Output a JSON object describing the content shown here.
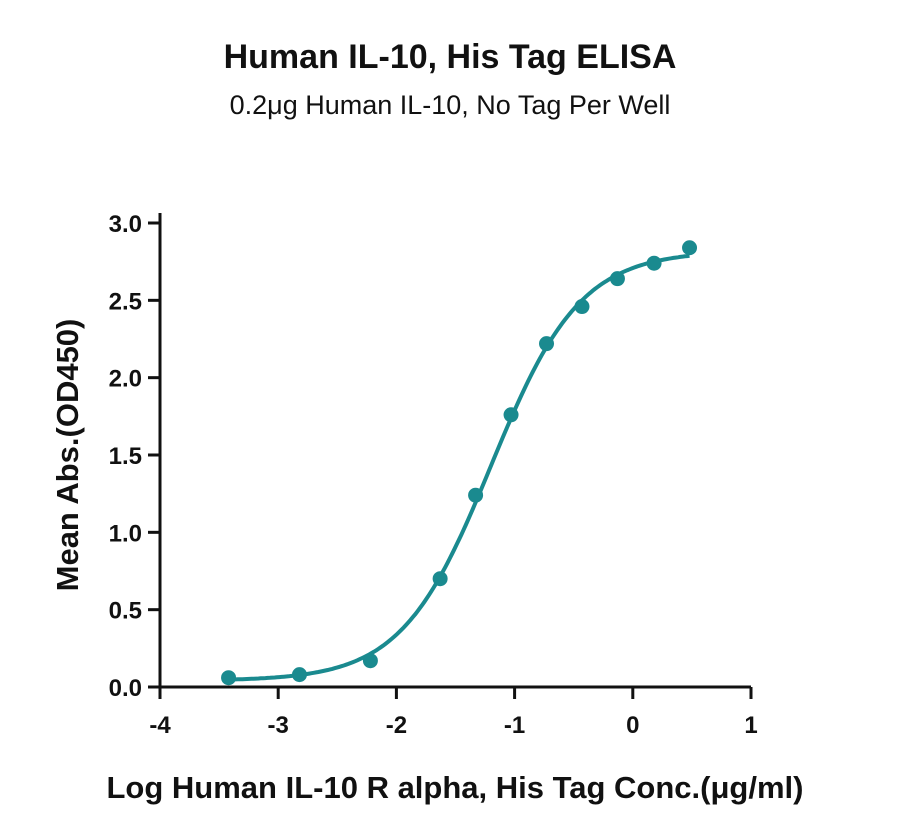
{
  "chart_data": {
    "type": "scatter",
    "title": "Human IL-10, His Tag ELISA",
    "subtitle": "0.2μg Human IL-10, No Tag Per Well",
    "xlabel": "Log Human IL-10 R alpha, His Tag Conc.(μg/ml)",
    "ylabel": "Mean Abs.(OD450)",
    "xlim": [
      -4,
      1
    ],
    "ylim": [
      0,
      3.0
    ],
    "xticks": [
      "-4",
      "-3",
      "-2",
      "-1",
      "0",
      "1"
    ],
    "yticks": [
      "0.0",
      "0.5",
      "1.0",
      "1.5",
      "2.0",
      "2.5",
      "3.0"
    ],
    "grid": false,
    "series": [
      {
        "color": "#1a8a8f",
        "x": [
          -3.42,
          -2.82,
          -2.22,
          -1.63,
          -1.33,
          -1.03,
          -0.73,
          -0.43,
          -0.13,
          0.18,
          0.48
        ],
        "y": [
          0.06,
          0.08,
          0.17,
          0.7,
          1.24,
          1.76,
          2.22,
          2.46,
          2.64,
          2.74,
          2.84
        ]
      }
    ],
    "fit_curve": {
      "model": "4PL",
      "bottom": 0.04,
      "top": 2.82,
      "log_ec50": -1.2,
      "hill_slope": 1.15
    }
  }
}
